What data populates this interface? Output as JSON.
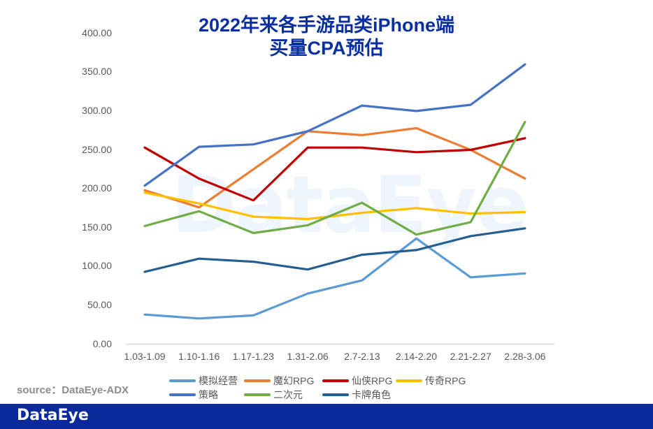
{
  "title": {
    "line1": "2022年来各手游品类iPhone端",
    "line2": "买量CPA预估"
  },
  "watermark": "DataEye",
  "source": "source：DataEye-ADX",
  "footer": {
    "logo": "DataEye"
  },
  "y_ticks": [
    "0.00",
    "50.00",
    "100.00",
    "150.00",
    "200.00",
    "250.00",
    "300.00",
    "350.00",
    "400.00"
  ],
  "x_ticks": [
    "1.03-1.09",
    "1.10-1.16",
    "1.17-1.23",
    "1.31-2.06",
    "2.7-2.13",
    "2.14-2.20",
    "2.21-2.27",
    "2.28-3.06"
  ],
  "legend": [
    {
      "name": "模拟经营",
      "color": "#5B9BD5"
    },
    {
      "name": "魔幻RPG",
      "color": "#ED7D31"
    },
    {
      "name": "仙侠RPG",
      "color": "#C00000"
    },
    {
      "name": "传奇RPG",
      "color": "#FFC000"
    },
    {
      "name": "策略",
      "color": "#4472C4"
    },
    {
      "name": "二次元",
      "color": "#70AD47"
    },
    {
      "name": "卡牌角色",
      "color": "#255E91"
    }
  ],
  "chart_data": {
    "type": "line",
    "title": "2022年来各手游品类iPhone端买量CPA预估",
    "xlabel": "",
    "ylabel": "",
    "ylim": [
      0,
      400
    ],
    "y_tick_step": 50,
    "grid": false,
    "legend_position": "bottom",
    "categories": [
      "1.03-1.09",
      "1.10-1.16",
      "1.17-1.23",
      "1.31-2.06",
      "2.7-2.13",
      "2.14-2.20",
      "2.21-2.27",
      "2.28-3.06"
    ],
    "series": [
      {
        "name": "模拟经营",
        "color": "#5B9BD5",
        "values": [
          38,
          33,
          37,
          65,
          82,
          136,
          86,
          91
        ]
      },
      {
        "name": "魔幻RPG",
        "color": "#ED7D31",
        "values": [
          198,
          176,
          225,
          274,
          269,
          278,
          250,
          213
        ]
      },
      {
        "name": "仙侠RPG",
        "color": "#C00000",
        "values": [
          253,
          213,
          185,
          253,
          253,
          247,
          250,
          265
        ]
      },
      {
        "name": "传奇RPG",
        "color": "#FFC000",
        "values": [
          195,
          181,
          164,
          161,
          169,
          175,
          168,
          170
        ]
      },
      {
        "name": "策略",
        "color": "#4472C4",
        "values": [
          204,
          254,
          257,
          274,
          307,
          300,
          308,
          360
        ]
      },
      {
        "name": "二次元",
        "color": "#70AD47",
        "values": [
          152,
          171,
          143,
          153,
          182,
          141,
          157,
          286
        ]
      },
      {
        "name": "卡牌角色",
        "color": "#255E91",
        "values": [
          93,
          110,
          106,
          96,
          115,
          121,
          139,
          149
        ]
      }
    ]
  }
}
